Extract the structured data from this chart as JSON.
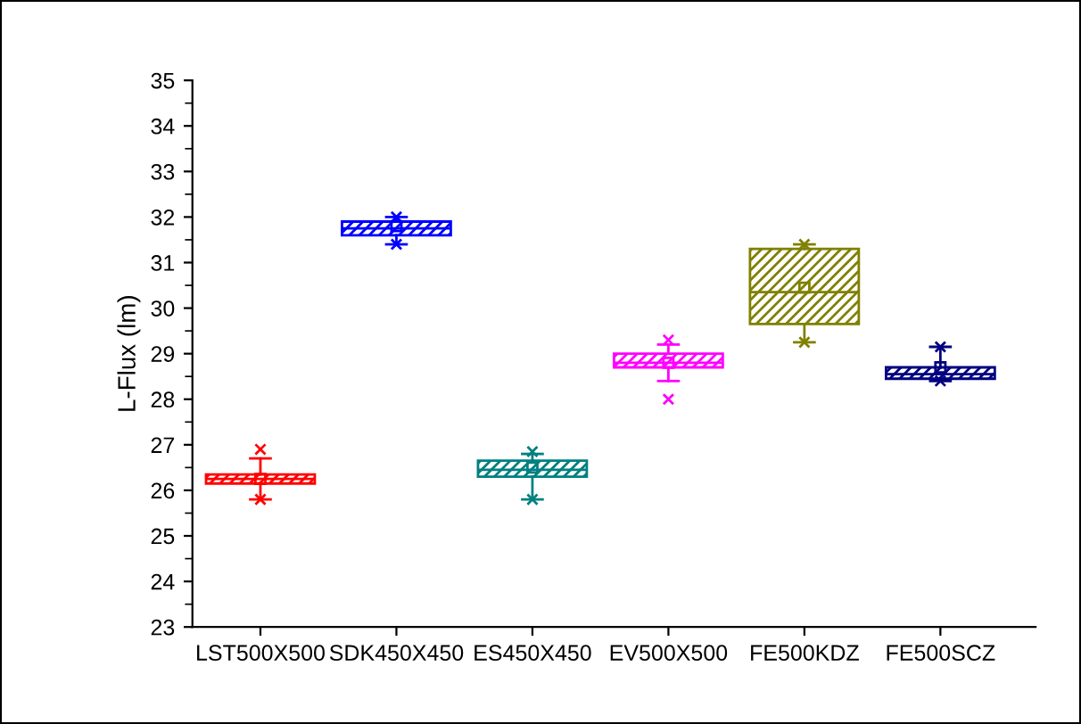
{
  "chart_data": {
    "type": "box",
    "ylabel": "L-Flux (lm)",
    "categories": [
      "LST500X500",
      "SDK450X450",
      "ES450X450",
      "EV500X500",
      "FE500KDZ",
      "FE500SCZ"
    ],
    "colors": [
      "#ff0000",
      "#0000ff",
      "#008080",
      "#ff00ff",
      "#808000",
      "#000080"
    ],
    "boxes": [
      {
        "low": 25.8,
        "q1": 26.15,
        "median": 26.25,
        "q3": 26.35,
        "high": 26.7,
        "mean": 26.25,
        "outliers": [
          26.9,
          25.8
        ]
      },
      {
        "low": 31.4,
        "q1": 31.6,
        "median": 31.75,
        "q3": 31.9,
        "high": 32.0,
        "mean": 31.8,
        "outliers": [
          32.0,
          31.4
        ]
      },
      {
        "low": 25.8,
        "q1": 26.3,
        "median": 26.45,
        "q3": 26.65,
        "high": 26.8,
        "mean": 26.5,
        "outliers": [
          26.85,
          25.8
        ]
      },
      {
        "low": 28.4,
        "q1": 28.7,
        "median": 28.8,
        "q3": 29.0,
        "high": 29.2,
        "mean": 28.8,
        "outliers": [
          29.3,
          28.0
        ]
      },
      {
        "low": 29.25,
        "q1": 29.65,
        "median": 30.35,
        "q3": 31.3,
        "high": 31.4,
        "mean": 30.45,
        "outliers": [
          31.4,
          29.25
        ]
      },
      {
        "low": 28.4,
        "q1": 28.45,
        "median": 28.55,
        "q3": 28.7,
        "high": 29.15,
        "mean": 28.7,
        "outliers": [
          29.15,
          28.4
        ]
      }
    ],
    "ylim": [
      23,
      35
    ],
    "yticks": [
      23,
      24,
      25,
      26,
      27,
      28,
      29,
      30,
      31,
      32,
      33,
      34,
      35
    ],
    "grid": false
  }
}
